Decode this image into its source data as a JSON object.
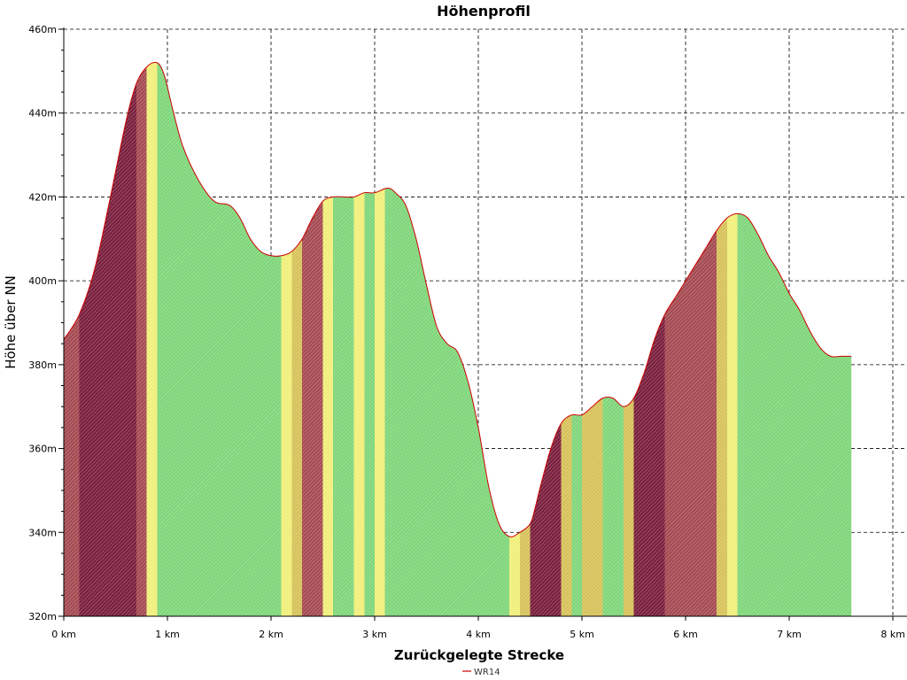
{
  "chart_data": {
    "type": "area",
    "title": "Höhenprofil",
    "xlabel": "Zurückgelegte Strecke",
    "ylabel": "Höhe über NN",
    "xlim": [
      0,
      8
    ],
    "ylim": [
      320,
      460
    ],
    "x_ticks": [
      0,
      1,
      2,
      3,
      4,
      5,
      6,
      7,
      8
    ],
    "x_tick_labels": [
      "0 km",
      "1 km",
      "2 km",
      "3 km",
      "4 km",
      "5 km",
      "6 km",
      "7 km",
      "8 km"
    ],
    "y_ticks": [
      320,
      340,
      360,
      380,
      400,
      420,
      440,
      460
    ],
    "y_tick_labels": [
      "320m",
      "340m",
      "360m",
      "380m",
      "400m",
      "420m",
      "440m",
      "460m"
    ],
    "grid": true,
    "legend_position": "bottom-center",
    "series": [
      {
        "name": "WR14",
        "line_color": "#cc0000",
        "x": [
          0,
          0.15,
          0.3,
          0.45,
          0.6,
          0.7,
          0.8,
          0.9,
          0.97,
          1.05,
          1.15,
          1.3,
          1.45,
          1.6,
          1.7,
          1.8,
          1.9,
          2.0,
          2.1,
          2.2,
          2.3,
          2.4,
          2.5,
          2.6,
          2.7,
          2.8,
          2.9,
          3.0,
          3.1,
          3.15,
          3.2,
          3.3,
          3.4,
          3.5,
          3.6,
          3.7,
          3.8,
          3.9,
          4.0,
          4.1,
          4.2,
          4.3,
          4.4,
          4.5,
          4.55,
          4.6,
          4.7,
          4.8,
          4.9,
          5.0,
          5.1,
          5.2,
          5.3,
          5.4,
          5.5,
          5.6,
          5.7,
          5.8,
          5.9,
          6.0,
          6.1,
          6.2,
          6.3,
          6.4,
          6.5,
          6.6,
          6.7,
          6.8,
          6.9,
          7.0,
          7.1,
          7.2,
          7.3,
          7.4,
          7.5,
          7.6
        ],
        "y": [
          386,
          392,
          403,
          420,
          438,
          447,
          451,
          452,
          449,
          441,
          432,
          424,
          419,
          418,
          415,
          410,
          407,
          406,
          406,
          407,
          410,
          415,
          419,
          420,
          420,
          420,
          421,
          421,
          422,
          422,
          421,
          418,
          410,
          399,
          389,
          385,
          383,
          376,
          365,
          351,
          342,
          339,
          340,
          342,
          346,
          351,
          360,
          366,
          368,
          368,
          370,
          372,
          372,
          370,
          372,
          378,
          386,
          392,
          396,
          400,
          404,
          408,
          412,
          415,
          416,
          415,
          411,
          406,
          402,
          397,
          393,
          388,
          384,
          382,
          382,
          382
        ]
      }
    ]
  }
}
